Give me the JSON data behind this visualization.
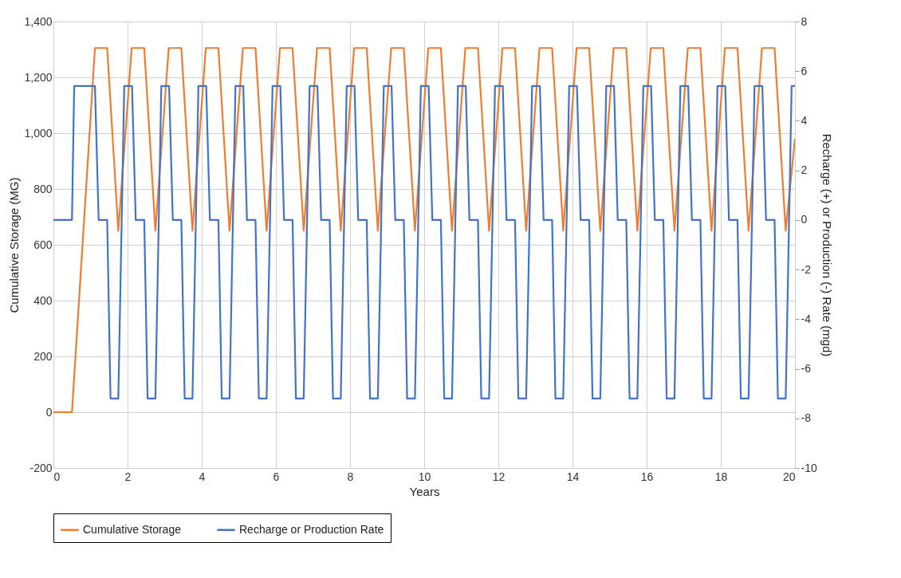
{
  "chart_data": {
    "type": "line",
    "xlabel": "Years",
    "ylabel": "Cumulative Storage (MG)",
    "y2label": "Recharge (+) or Production (-) Rate (mgd)",
    "xlim": [
      0,
      20
    ],
    "xticks": [
      0,
      2,
      4,
      6,
      8,
      10,
      12,
      14,
      16,
      18,
      20
    ],
    "ylim": [
      -200,
      1400
    ],
    "yticks": [
      -200,
      0,
      200,
      400,
      600,
      800,
      {
        "value": 1000,
        "label": "1,000"
      },
      {
        "value": 1200,
        "label": "1,200"
      },
      {
        "value": 1400,
        "label": "1,400"
      }
    ],
    "y2lim": [
      -10,
      8
    ],
    "y2ticks": [
      -10,
      -8,
      -6,
      -4,
      -2,
      0,
      2,
      4,
      6,
      8
    ],
    "grid": true,
    "legend": "bottom",
    "series": [
      {
        "name": "Cumulative Storage",
        "color": "#ed7d31",
        "x": [
          0,
          0.5,
          1.12,
          1.45,
          1.75,
          2.11,
          2.45,
          2.75,
          3.11,
          3.45,
          3.75,
          4.11,
          4.45,
          4.75,
          5.11,
          5.45,
          5.75,
          6.11,
          6.45,
          6.75,
          7.11,
          7.45,
          7.75,
          8.11,
          8.45,
          8.75,
          9.11,
          9.45,
          9.75,
          10.11,
          10.45,
          10.75,
          11.11,
          11.45,
          11.75,
          12.11,
          12.45,
          12.75,
          13.11,
          13.45,
          13.75,
          14.11,
          14.45,
          14.75,
          15.11,
          15.45,
          15.75,
          16.11,
          16.45,
          16.75,
          17.11,
          17.45,
          17.75,
          18.11,
          18.45,
          18.75,
          19.11,
          19.45,
          19.75,
          20
        ],
        "values": [
          0,
          0,
          1305,
          1305,
          650,
          1305,
          1305,
          650,
          1305,
          1305,
          650,
          1305,
          1305,
          650,
          1305,
          1305,
          650,
          1305,
          1305,
          650,
          1305,
          1305,
          650,
          1305,
          1305,
          650,
          1305,
          1305,
          650,
          1305,
          1305,
          650,
          1305,
          1305,
          650,
          1305,
          1305,
          650,
          1305,
          1305,
          650,
          1305,
          1305,
          650,
          1305,
          1305,
          650,
          1305,
          1305,
          650,
          1305,
          1305,
          650,
          1305,
          1305,
          650,
          1305,
          1305,
          650,
          980
        ]
      },
      {
        "name": "Recharge or Production Rate",
        "color": "#4472c4",
        "axis": "y2",
        "x": [
          0,
          0.5,
          0.56,
          1.12,
          1.22,
          1.45,
          1.54,
          1.75,
          1.91,
          2.12,
          2.22,
          2.45,
          2.54,
          2.75,
          2.91,
          3.12,
          3.22,
          3.45,
          3.54,
          3.75,
          3.91,
          4.12,
          4.22,
          4.45,
          4.54,
          4.75,
          4.91,
          5.12,
          5.22,
          5.45,
          5.54,
          5.75,
          5.91,
          6.12,
          6.22,
          6.45,
          6.54,
          6.75,
          6.91,
          7.12,
          7.22,
          7.45,
          7.54,
          7.75,
          7.91,
          8.12,
          8.22,
          8.45,
          8.54,
          8.75,
          8.91,
          9.12,
          9.22,
          9.45,
          9.54,
          9.75,
          9.91,
          10.12,
          10.22,
          10.45,
          10.54,
          10.75,
          10.91,
          11.12,
          11.22,
          11.45,
          11.54,
          11.75,
          11.91,
          12.12,
          12.22,
          12.45,
          12.54,
          12.75,
          12.91,
          13.12,
          13.22,
          13.45,
          13.54,
          13.75,
          13.91,
          14.12,
          14.22,
          14.45,
          14.54,
          14.75,
          14.91,
          15.12,
          15.22,
          15.45,
          15.54,
          15.75,
          15.91,
          16.12,
          16.22,
          16.45,
          16.54,
          16.75,
          16.91,
          17.12,
          17.22,
          17.45,
          17.54,
          17.75,
          17.91,
          18.12,
          18.22,
          18.45,
          18.54,
          18.75,
          18.91,
          19.12,
          19.22,
          19.45,
          19.54,
          19.75,
          19.91,
          20
        ],
        "values": [
          0,
          0,
          5.4,
          5.4,
          0,
          0,
          -7.2,
          -7.2,
          5.4,
          5.4,
          0,
          0,
          -7.2,
          -7.2,
          5.4,
          5.4,
          0,
          0,
          -7.2,
          -7.2,
          5.4,
          5.4,
          0,
          0,
          -7.2,
          -7.2,
          5.4,
          5.4,
          0,
          0,
          -7.2,
          -7.2,
          5.4,
          5.4,
          0,
          0,
          -7.2,
          -7.2,
          5.4,
          5.4,
          0,
          0,
          -7.2,
          -7.2,
          5.4,
          5.4,
          0,
          0,
          -7.2,
          -7.2,
          5.4,
          5.4,
          0,
          0,
          -7.2,
          -7.2,
          5.4,
          5.4,
          0,
          0,
          -7.2,
          -7.2,
          5.4,
          5.4,
          0,
          0,
          -7.2,
          -7.2,
          5.4,
          5.4,
          0,
          0,
          -7.2,
          -7.2,
          5.4,
          5.4,
          0,
          0,
          -7.2,
          -7.2,
          5.4,
          5.4,
          0,
          0,
          -7.2,
          -7.2,
          5.4,
          5.4,
          0,
          0,
          -7.2,
          -7.2,
          5.4,
          5.4,
          0,
          0,
          -7.2,
          -7.2,
          5.4,
          5.4,
          0,
          0,
          -7.2,
          -7.2,
          5.4,
          5.4,
          0,
          0,
          -7.2,
          -7.2,
          5.4,
          5.4,
          0,
          0,
          -7.2,
          -7.2,
          5.4,
          5.4
        ]
      }
    ]
  }
}
